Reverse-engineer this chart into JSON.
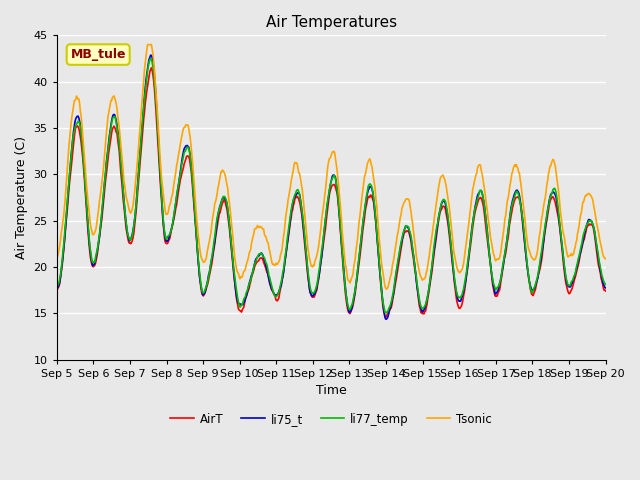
{
  "title": "Air Temperatures",
  "xlabel": "Time",
  "ylabel": "Air Temperature (C)",
  "annotation": "MB_tule",
  "annotation_color": "#8B0000",
  "annotation_bg": "#FFFFC0",
  "annotation_border": "#CCCC00",
  "ylim": [
    10,
    45
  ],
  "xlim_days": [
    0,
    15
  ],
  "x_tick_labels": [
    "Sep 5",
    "Sep 6",
    "Sep 7",
    "Sep 8",
    "Sep 9",
    "Sep 10",
    "Sep 11",
    "Sep 12",
    "Sep 13",
    "Sep 14",
    "Sep 15",
    "Sep 16",
    "Sep 17",
    "Sep 18",
    "Sep 19",
    "Sep 20"
  ],
  "x_tick_positions": [
    0,
    1,
    2,
    3,
    4,
    5,
    6,
    7,
    8,
    9,
    10,
    11,
    12,
    13,
    14,
    15
  ],
  "y_ticks": [
    10,
    15,
    20,
    25,
    30,
    35,
    40,
    45
  ],
  "grid_color": "#FFFFFF",
  "fig_bg_color": "#E8E8E8",
  "ax_bg_color": "#E8E8E8",
  "series": {
    "AirT": {
      "color": "#FF0000",
      "lw": 1.2
    },
    "li75_t": {
      "color": "#0000CC",
      "lw": 1.2
    },
    "li77_temp": {
      "color": "#00BB00",
      "lw": 1.2
    },
    "Tsonic": {
      "color": "#FFA500",
      "lw": 1.2
    }
  },
  "legend_order": [
    "AirT",
    "li75_t",
    "li77_temp",
    "Tsonic"
  ]
}
